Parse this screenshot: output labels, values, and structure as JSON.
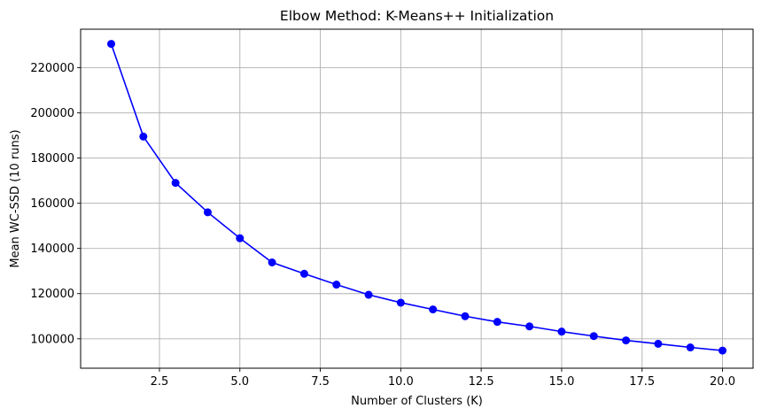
{
  "chart_data": {
    "type": "line",
    "title": "Elbow Method: K-Means++ Initialization",
    "xlabel": "Number of Clusters (K)",
    "ylabel": "Mean WC-SSD (10 runs)",
    "xlim": [
      0.05,
      20.95
    ],
    "ylim": [
      87000,
      237000
    ],
    "x_ticks": [
      2.5,
      5.0,
      7.5,
      10.0,
      12.5,
      15.0,
      17.5,
      20.0
    ],
    "x_tick_labels": [
      "2.5",
      "5.0",
      "7.5",
      "10.0",
      "12.5",
      "15.0",
      "17.5",
      "20.0"
    ],
    "y_ticks": [
      100000,
      120000,
      140000,
      160000,
      180000,
      200000,
      220000
    ],
    "y_tick_labels": [
      "100000",
      "120000",
      "140000",
      "160000",
      "180000",
      "200000",
      "220000"
    ],
    "grid": true,
    "line_color": "#0000ff",
    "marker": "circle",
    "x": [
      1,
      2,
      3,
      4,
      5,
      6,
      7,
      8,
      9,
      10,
      11,
      12,
      13,
      14,
      15,
      16,
      17,
      18,
      19,
      20
    ],
    "y": [
      230500,
      189500,
      169000,
      156000,
      144500,
      133800,
      128800,
      124000,
      119500,
      116000,
      113000,
      110000,
      107500,
      105500,
      103200,
      101200,
      99300,
      97800,
      96200,
      94800
    ]
  }
}
